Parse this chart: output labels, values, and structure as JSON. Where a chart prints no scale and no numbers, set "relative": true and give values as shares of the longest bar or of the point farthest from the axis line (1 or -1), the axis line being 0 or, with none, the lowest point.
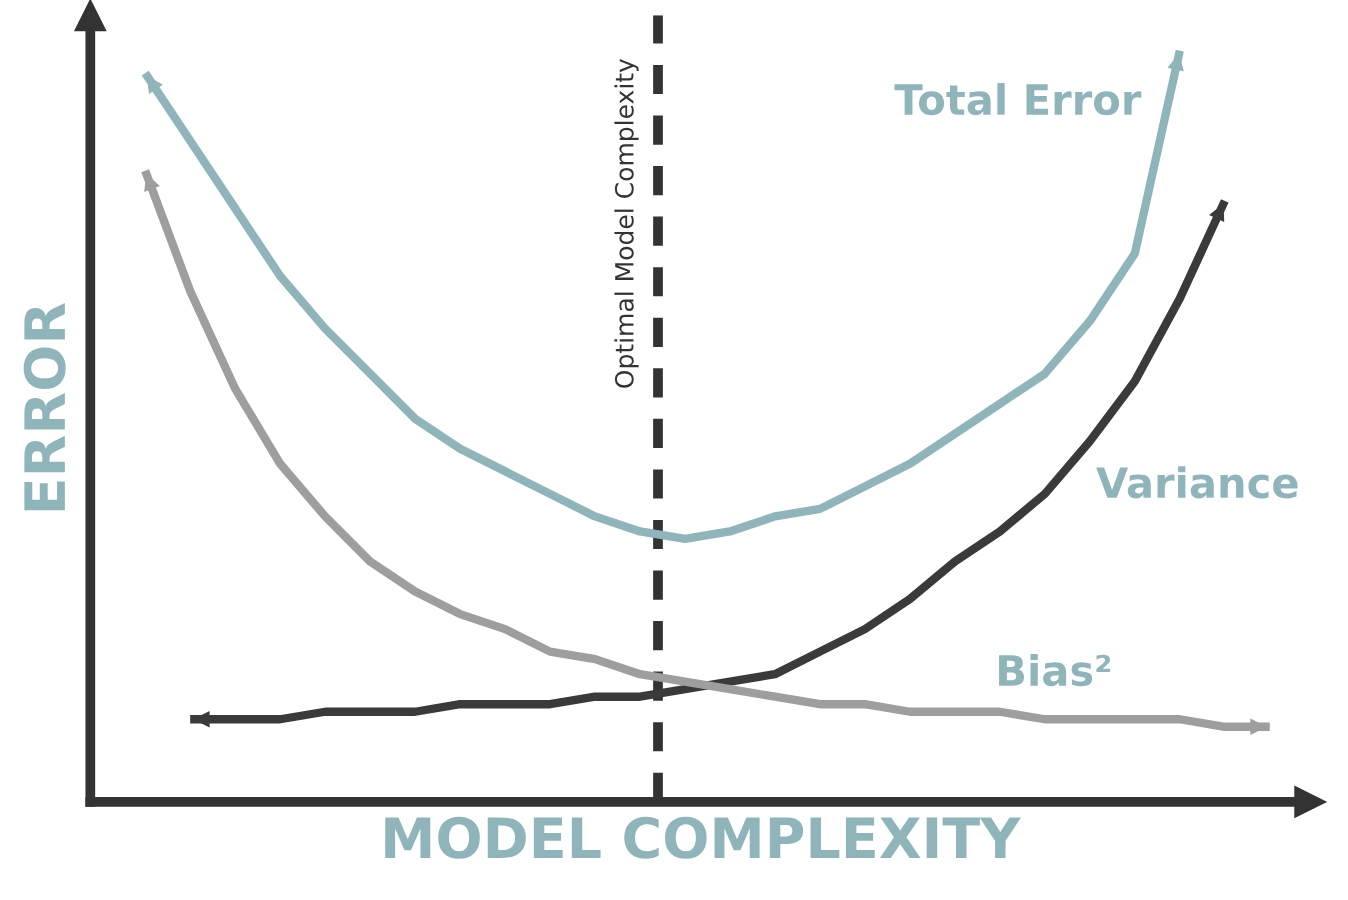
{
  "chart_data": {
    "type": "line",
    "relative": true,
    "xlabel": "MODEL COMPLEXITY",
    "ylabel": "ERROR",
    "categories": [
      null,
      null,
      null,
      null,
      null,
      null,
      null,
      null,
      null,
      null,
      null,
      null,
      null,
      null,
      null,
      null,
      null,
      null,
      null,
      null,
      null,
      null,
      null,
      null,
      null,
      null
    ],
    "series": [
      {
        "name": "Total Error",
        "color": "#8fb5ba",
        "values": [
          0.97,
          0.88,
          0.79,
          0.7,
          0.63,
          0.57,
          0.51,
          0.47,
          0.44,
          0.41,
          0.38,
          0.36,
          0.35,
          0.36,
          0.38,
          0.39,
          0.42,
          0.45,
          0.49,
          0.53,
          0.57,
          0.64,
          0.73,
          1.0,
          null,
          null
        ]
      },
      {
        "name": "Variance",
        "color": "#3a3a3a",
        "values": [
          null,
          0.11,
          0.11,
          0.11,
          0.12,
          0.12,
          0.12,
          0.13,
          0.13,
          0.13,
          0.14,
          0.14,
          0.15,
          0.16,
          0.17,
          0.2,
          0.23,
          0.27,
          0.32,
          0.36,
          0.41,
          0.48,
          0.56,
          0.67,
          0.8,
          null
        ]
      },
      {
        "name": "Bias²",
        "color": "#9e9e9e",
        "values": [
          0.84,
          0.68,
          0.55,
          0.45,
          0.38,
          0.32,
          0.28,
          0.25,
          0.23,
          0.2,
          0.19,
          0.17,
          0.16,
          0.15,
          0.14,
          0.13,
          0.13,
          0.12,
          0.12,
          0.12,
          0.11,
          0.11,
          0.11,
          0.11,
          0.1,
          0.1
        ]
      }
    ],
    "annotations": [
      "Optimal Model Complexity"
    ]
  }
}
